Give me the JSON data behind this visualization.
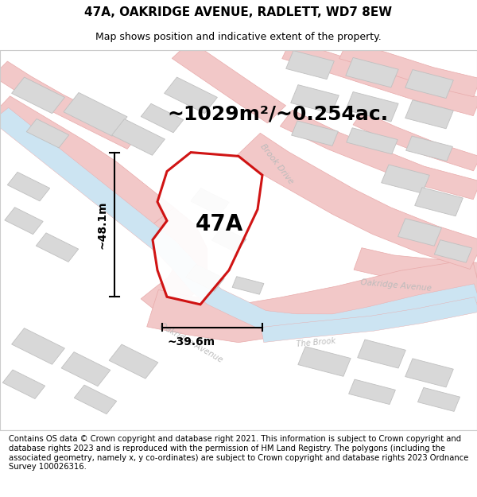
{
  "title": "47A, OAKRIDGE AVENUE, RADLETT, WD7 8EW",
  "subtitle": "Map shows position and indicative extent of the property.",
  "area_label": "~1029m²/~0.254ac.",
  "property_label": "47A",
  "dim_width": "~39.6m",
  "dim_height": "~48.1m",
  "footer": "Contains OS data © Crown copyright and database right 2021. This information is subject to Crown copyright and database rights 2023 and is reproduced with the permission of HM Land Registry. The polygons (including the associated geometry, namely x, y co-ordinates) are subject to Crown copyright and database rights 2023 Ordnance Survey 100026316.",
  "map_bg": "#f9f9f9",
  "road_fill": "#f2c8c8",
  "road_line": "#e8aaaa",
  "road_line2": "#ddaaaa",
  "building_fill": "#d8d8d8",
  "building_edge": "#c0c0c0",
  "water_fill": "#cce4f2",
  "property_fill": "#ffffff",
  "property_edge": "#cc0000",
  "street_color": "#bbbbbb",
  "title_fontsize": 11,
  "subtitle_fontsize": 9,
  "area_fontsize": 18,
  "prop_label_fontsize": 20,
  "dim_fontsize": 10,
  "footer_fontsize": 7.2,
  "street_fontsize": 7.5
}
